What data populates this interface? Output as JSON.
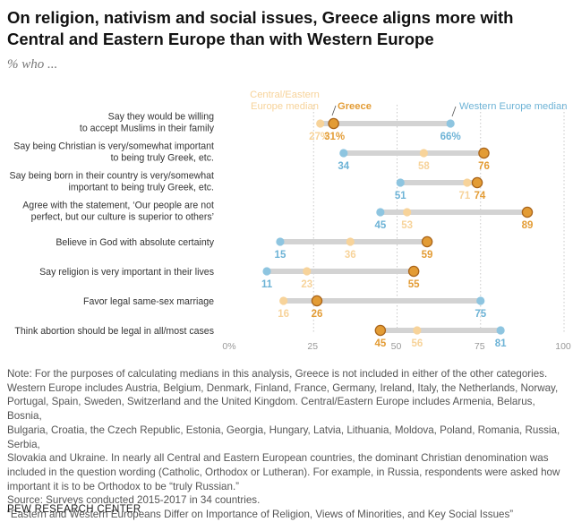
{
  "title": "On religion, nativism and social issues, Greece aligns more with Central and Eastern Europe than with Western Europe",
  "subtitle": "% who ...",
  "colors": {
    "greece": "#e39c35",
    "greece_stroke": "#a9641a",
    "central_eastern": "#f7d39a",
    "western": "#8ec5e0",
    "western_text": "#6db3d6",
    "bar": "#d3d3d3"
  },
  "chart_data": {
    "type": "dot",
    "xlim": [
      0,
      100
    ],
    "x_ticks": [
      "0%",
      "25",
      "50",
      "75",
      "100"
    ],
    "legend": {
      "central_eastern": [
        "Central/Eastern",
        "Europe median"
      ],
      "greece": "Greece",
      "western": "Western Europe median"
    },
    "rows": [
      {
        "label": [
          "Say they would be willing",
          "to accept Muslims in their family"
        ],
        "greece": 31,
        "central_eastern": 27,
        "western": 66,
        "labels": {
          "greece": "31%",
          "central_eastern": "27%",
          "western": "66%"
        }
      },
      {
        "label": [
          "Say being Christian is very/somewhat important",
          "to being truly Greek, etc."
        ],
        "greece": 76,
        "central_eastern": 58,
        "western": 34,
        "labels": {
          "greece": "76",
          "central_eastern": "58",
          "western": "34"
        }
      },
      {
        "label": [
          "Say being born in their country is very/somewhat",
          "important to being truly Greek, etc."
        ],
        "greece": 74,
        "central_eastern": 71,
        "western": 51,
        "labels": {
          "greece": "74",
          "central_eastern": "71",
          "western": "51"
        }
      },
      {
        "label": [
          "Agree with the statement, ‘Our people are not",
          "perfect, but our culture is superior to others’"
        ],
        "greece": 89,
        "central_eastern": 53,
        "western": 45,
        "labels": {
          "greece": "89",
          "central_eastern": "53",
          "western": "45"
        }
      },
      {
        "label": [
          "Believe in God with absolute certainty"
        ],
        "greece": 59,
        "central_eastern": 36,
        "western": 15,
        "labels": {
          "greece": "59",
          "central_eastern": "36",
          "western": "15"
        }
      },
      {
        "label": [
          "Say religion is very important in their lives"
        ],
        "greece": 55,
        "central_eastern": 23,
        "western": 11,
        "labels": {
          "greece": "55",
          "central_eastern": "23",
          "western": "11"
        }
      },
      {
        "label": [
          "Favor legal same-sex marriage"
        ],
        "greece": 26,
        "central_eastern": 16,
        "western": 75,
        "labels": {
          "greece": "26",
          "central_eastern": "16",
          "western": "75"
        }
      },
      {
        "label": [
          "Think abortion should be legal in all/most cases"
        ],
        "greece": 45,
        "central_eastern": 56,
        "western": 81,
        "labels": {
          "greece": "45",
          "central_eastern": "56",
          "western": "81"
        }
      }
    ]
  },
  "note": {
    "lines": [
      "Note: For the purposes of calculating medians in this analysis, Greece is not included in either of the other categories.",
      "Western Europe includes Austria, Belgium, Denmark, Finland, France, Germany, Ireland, Italy, the Netherlands, Norway,",
      "Portugal, Spain, Sweden, Switzerland and the United Kingdom. Central/Eastern Europe includes Armenia, Belarus, Bosnia,",
      "Bulgaria, Croatia, the Czech Republic, Estonia, Georgia, Hungary, Latvia, Lithuania, Moldova, Poland, Romania, Russia, Serbia,",
      "Slovakia and Ukraine. In nearly all Central and Eastern European countries, the dominant Christian denomination was",
      "included in the question wording (Catholic, Orthodox or Lutheran). For example, in Russia, respondents were asked how",
      "important it is to be Orthodox to be “truly Russian.”"
    ],
    "source": "Source: Surveys conducted 2015-2017 in 34 countries.",
    "report": "“Eastern and Western Europeans Differ on Importance of Religion, Views of Minorities, and Key Social Issues”"
  },
  "footer": "PEW RESEARCH CENTER"
}
